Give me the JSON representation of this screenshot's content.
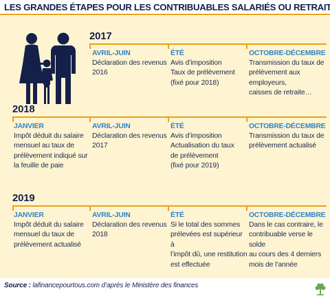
{
  "title": "LES GRANDES ÉTAPES POUR LES CONTRIBUABLES SALARIÉS OU RETRAITÉS",
  "colors": {
    "accent": "#e8a21a",
    "heading_blue": "#2f84c5",
    "navy": "#15204a",
    "panel": "#fef4d2"
  },
  "icons": {
    "family": "family-icon",
    "logo": "tree-logo-icon"
  },
  "years": [
    {
      "year": "2017",
      "columns": [
        {
          "head": "",
          "body": ""
        },
        {
          "head": "AVRIL-JUIN",
          "body": "Déclaration des revenus\n2016"
        },
        {
          "head": "ÉTÉ",
          "body": "Avis d’imposition\nTaux de prélèvement\n(fixé pour 2018)"
        },
        {
          "head": "OCTOBRE-DÉCEMBRE",
          "body": "Transmission du taux de\nprélèvement aux employeurs,\ncaisses de retraite…"
        }
      ]
    },
    {
      "year": "2018",
      "columns": [
        {
          "head": "JANVIER",
          "body": "Impôt déduit du salaire\nmensuel au taux de\nprélèvement indiqué sur\nla feuille de paie"
        },
        {
          "head": "AVRIL-JUIN",
          "body": "Déclaration des revenus\n2017"
        },
        {
          "head": "ÉTÉ",
          "body": "Avis d’imposition\nActualisation du taux\nde prélèvement\n(fixé pour 2019)"
        },
        {
          "head": "OCTOBRE-DÉCEMBRE",
          "body": "Transmission du taux de\nprélèvement actualisé"
        }
      ]
    },
    {
      "year": "2019",
      "columns": [
        {
          "head": "JANVIER",
          "body": "Impôt déduit du salaire\nmensuel du taux de\nprélèvement actualisé"
        },
        {
          "head": "AVRIL-JUIN",
          "body": "Déclaration des revenus\n2018"
        },
        {
          "head": "ÉTÉ",
          "body": "Si le total des sommes\nprélevées est supérieur à\nl’impôt dû, une restitution\nest effectuée"
        },
        {
          "head": "OCTOBRE-DÉCEMBRE",
          "body": "Dans le cas contraire, le\ncontribuable verse le solde\nau cours des 4 derniers\nmois de l’année"
        }
      ]
    }
  ],
  "source": {
    "label": "Source :",
    "text": " lafinancepourtous.com d’après le Ministère des finances"
  }
}
